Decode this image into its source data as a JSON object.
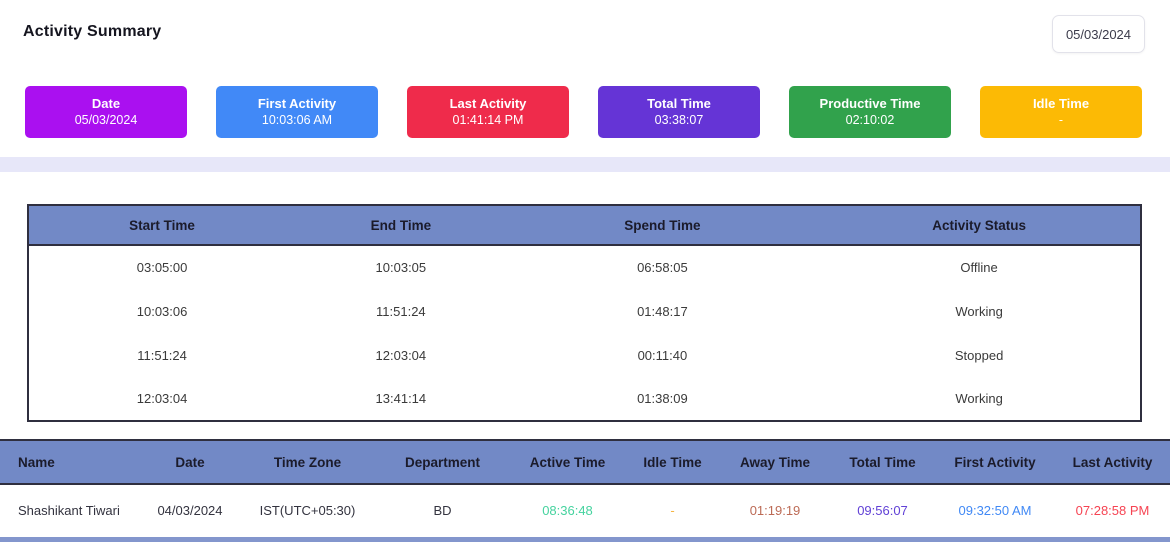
{
  "page": {
    "title": "Activity Summary",
    "date_picker": "05/03/2024"
  },
  "colors": {
    "table_header_bg": "#7289C6",
    "divider_band": "#E7E7F9"
  },
  "summary_cards": [
    {
      "label": "Date",
      "value": "05/03/2024",
      "color": "#AA10F0"
    },
    {
      "label": "First Activity",
      "value": "10:03:06 AM",
      "color": "#4189F7"
    },
    {
      "label": "Last Activity",
      "value": "01:41:14 PM",
      "color": "#EF2B4B"
    },
    {
      "label": "Total Time",
      "value": "03:38:07",
      "color": "#6534D6"
    },
    {
      "label": "Productive Time",
      "value": "02:10:02",
      "color": "#31A24C"
    },
    {
      "label": "Idle Time",
      "value": "-",
      "color": "#FCBA05"
    }
  ],
  "activity_table": {
    "headers": [
      "Start Time",
      "End Time",
      "Spend Time",
      "Activity Status"
    ],
    "rows": [
      [
        "03:05:00",
        "10:03:05",
        "06:58:05",
        "Offline"
      ],
      [
        "10:03:06",
        "11:51:24",
        "01:48:17",
        "Working"
      ],
      [
        "11:51:24",
        "12:03:04",
        "00:11:40",
        "Stopped"
      ],
      [
        "12:03:04",
        "13:41:14",
        "01:38:09",
        "Working"
      ]
    ]
  },
  "user_table": {
    "headers": [
      "Name",
      "Date",
      "Time Zone",
      "Department",
      "Active Time",
      "Idle Time",
      "Away Time",
      "Total Time",
      "First Activity",
      "Last Activity"
    ],
    "row": {
      "cells": [
        {
          "text": "Shashikant Tiwari",
          "color": "#33333f"
        },
        {
          "text": "04/03/2024",
          "color": "#33333f"
        },
        {
          "text": "IST(UTC+05:30)",
          "color": "#33333f"
        },
        {
          "text": "BD",
          "color": "#33333f"
        },
        {
          "text": "08:36:48",
          "color": "#46D39F"
        },
        {
          "text": "-",
          "color": "#F5B544"
        },
        {
          "text": "01:19:19",
          "color": "#BC6A55"
        },
        {
          "text": "09:56:07",
          "color": "#6141D6"
        },
        {
          "text": "09:32:50 AM",
          "color": "#4189F5"
        },
        {
          "text": "07:28:58 PM",
          "color": "#F64352"
        }
      ]
    }
  }
}
